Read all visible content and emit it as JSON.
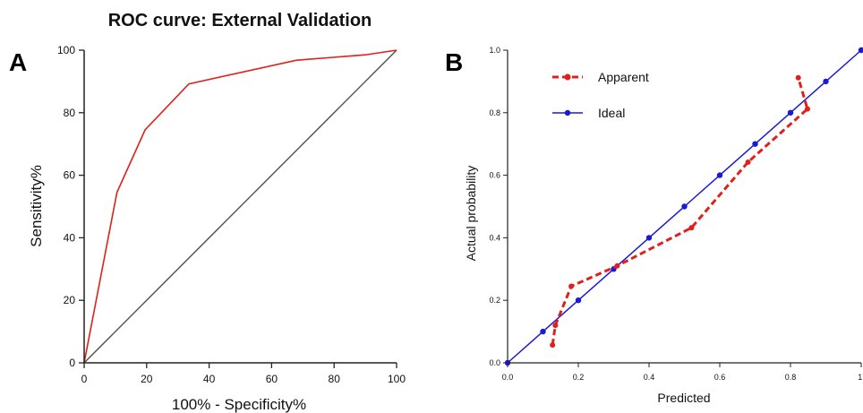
{
  "charts": [
    {
      "panel": "A",
      "type": "line",
      "title": "ROC curve: External Validation",
      "xlabel": "100% - Specificity%",
      "ylabel": "Sensitivity%",
      "xlim": [
        0,
        100
      ],
      "ylim": [
        0,
        100
      ],
      "xticks": [
        0,
        20,
        40,
        60,
        80,
        100
      ],
      "yticks": [
        0,
        20,
        40,
        60,
        80,
        100
      ],
      "series": [
        {
          "color": "#e0201c",
          "x": [
            0,
            10.5,
            19.5,
            33.5,
            68,
            90,
            100
          ],
          "y": [
            0,
            54.5,
            74.5,
            89.2,
            96.8,
            98.5,
            100
          ]
        },
        {
          "color": "#555555",
          "x": [
            0,
            100
          ],
          "y": [
            0,
            100
          ]
        }
      ]
    },
    {
      "panel": "B",
      "type": "line",
      "xlabel": "Predicted",
      "ylabel": "Actual probability",
      "xlim": [
        0,
        1
      ],
      "ylim": [
        0,
        1
      ],
      "xticks": [
        "0.0",
        "0.2",
        "0.4",
        "0.6",
        "0.8",
        "1."
      ],
      "yticks": [
        "0.0",
        "0.2",
        "0.4",
        "0.6",
        "0.8",
        "1.0"
      ],
      "legend_position": "top-left",
      "series": [
        {
          "name": "Apparent",
          "color": "#e0201c",
          "dashed": true,
          "x": [
            0.127,
            0.135,
            0.18,
            0.31,
            0.52,
            0.68,
            0.848,
            0.822
          ],
          "y": [
            0.057,
            0.12,
            0.245,
            0.31,
            0.432,
            0.642,
            0.812,
            0.912
          ]
        },
        {
          "name": "Ideal",
          "color": "#1a1ad6",
          "dashed": false,
          "x": [
            0,
            0.1,
            0.2,
            0.3,
            0.4,
            0.5,
            0.6,
            0.7,
            0.8,
            0.9,
            1.0
          ],
          "y": [
            0,
            0.1,
            0.2,
            0.3,
            0.4,
            0.5,
            0.6,
            0.7,
            0.8,
            0.9,
            1.0
          ]
        }
      ]
    }
  ]
}
